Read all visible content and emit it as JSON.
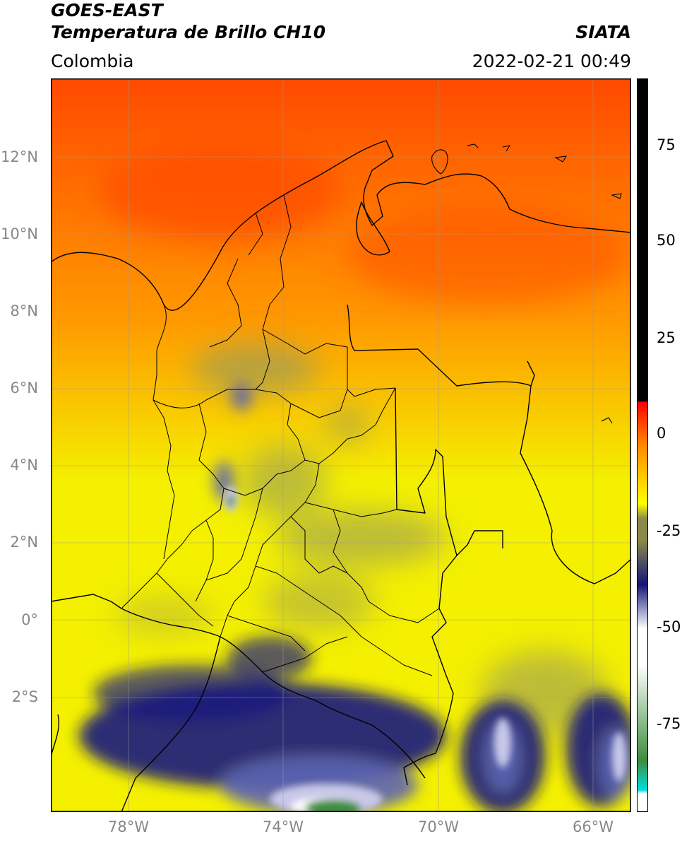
{
  "header": {
    "satellite": "GOES-EAST",
    "product": "Temperatura de Brillo CH10",
    "region": "Colombia",
    "org": "SIATA",
    "datetime": "2022-02-21 00:49"
  },
  "map": {
    "lat_labels": [
      "12°N",
      "10°N",
      "8°N",
      "6°N",
      "4°N",
      "2°N",
      "0°",
      "2°S"
    ],
    "lon_labels": [
      "78°W",
      "74°W",
      "70°W",
      "66°W"
    ],
    "colors": {
      "warm": "#ff4a00",
      "orange": "#ff9900",
      "yellow": "#f4f000",
      "olive": "#9a9a5a",
      "gray": "#6e6e6e",
      "navy": "#1a1a80",
      "blue": "#5c64b4",
      "lavender": "#c8c8e8",
      "white": "#ffffff",
      "green": "#3c8c3c",
      "border": "#000000"
    }
  },
  "colorbar": {
    "ticks": [
      "75",
      "50",
      "25",
      "0",
      "-25",
      "-50",
      "-75"
    ],
    "colors": {
      "black": "#000000",
      "red": "#ff0000",
      "orange": "#ff8a00",
      "yellow": "#ffff00",
      "olive": "#8a8a4a",
      "navy": "#141478",
      "white": "#ffffff",
      "green": "#3c8c3c",
      "teal": "#20b0a0",
      "cyan": "#00e0e0"
    }
  }
}
